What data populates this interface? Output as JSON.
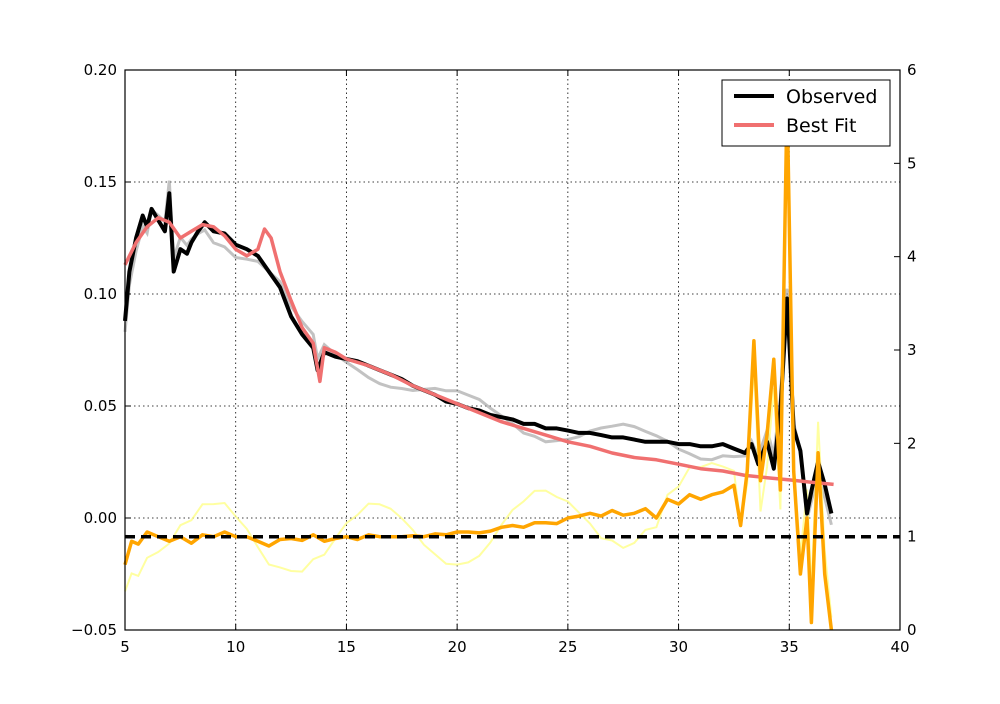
{
  "chart_data": {
    "type": "line",
    "title": "",
    "xlabel": "",
    "ylabel": "",
    "y2label": "",
    "xlim": [
      5,
      40
    ],
    "ylim": [
      -0.05,
      0.2
    ],
    "y2lim": [
      0,
      6
    ],
    "grid": true,
    "legend_position": "top-right",
    "x_ticks": [
      "5",
      "10",
      "15",
      "20",
      "25",
      "30",
      "35",
      "40"
    ],
    "y_ticks": [
      "−0.05",
      "0.00",
      "0.05",
      "0.10",
      "0.15",
      "0.20"
    ],
    "y2_ticks": [
      "0",
      "1",
      "2",
      "3",
      "4",
      "5",
      "6"
    ],
    "series": [
      {
        "name": "Observed",
        "axis": "left",
        "color": "#000000",
        "x": [
          5.0,
          5.2,
          5.5,
          5.8,
          6.0,
          6.2,
          6.5,
          6.8,
          7.0,
          7.2,
          7.5,
          7.8,
          8.0,
          8.3,
          8.6,
          9.0,
          9.5,
          10.0,
          10.5,
          11.0,
          11.5,
          12.0,
          12.5,
          13.0,
          13.5,
          13.7,
          14.0,
          14.5,
          15.0,
          15.5,
          16.0,
          16.5,
          17.0,
          17.5,
          18.0,
          18.5,
          19.0,
          19.5,
          20.0,
          20.5,
          21.0,
          21.5,
          22.0,
          22.5,
          23.0,
          23.5,
          24.0,
          24.5,
          25.0,
          25.5,
          26.0,
          26.5,
          27.0,
          27.5,
          28.0,
          28.5,
          29.0,
          29.5,
          30.0,
          30.5,
          31.0,
          31.5,
          32.0,
          32.5,
          33.0,
          33.3,
          33.6,
          34.0,
          34.3,
          34.6,
          34.9,
          35.2,
          35.5,
          35.8,
          36.0,
          36.3,
          36.6,
          36.9
        ],
        "values": [
          0.088,
          0.11,
          0.125,
          0.135,
          0.13,
          0.138,
          0.133,
          0.128,
          0.145,
          0.11,
          0.12,
          0.118,
          0.123,
          0.128,
          0.132,
          0.128,
          0.127,
          0.122,
          0.12,
          0.117,
          0.11,
          0.103,
          0.09,
          0.082,
          0.076,
          0.066,
          0.074,
          0.072,
          0.071,
          0.07,
          0.068,
          0.066,
          0.064,
          0.062,
          0.059,
          0.057,
          0.055,
          0.052,
          0.051,
          0.049,
          0.048,
          0.046,
          0.045,
          0.044,
          0.042,
          0.042,
          0.04,
          0.04,
          0.039,
          0.038,
          0.038,
          0.037,
          0.036,
          0.036,
          0.035,
          0.034,
          0.034,
          0.034,
          0.033,
          0.033,
          0.032,
          0.032,
          0.033,
          0.031,
          0.029,
          0.033,
          0.024,
          0.034,
          0.022,
          0.048,
          0.098,
          0.04,
          0.03,
          0.002,
          0.012,
          0.025,
          0.015,
          0.002
        ]
      },
      {
        "name": "Best Fit",
        "axis": "left",
        "color": "#f07070",
        "x": [
          5.0,
          5.5,
          6.0,
          6.5,
          7.0,
          7.5,
          8.0,
          8.5,
          9.0,
          9.5,
          10.0,
          10.5,
          11.0,
          11.3,
          11.6,
          12.0,
          12.5,
          13.0,
          13.5,
          13.8,
          14.0,
          14.5,
          15.0,
          16.0,
          17.0,
          18.0,
          19.0,
          20.0,
          21.0,
          22.0,
          23.0,
          24.0,
          25.0,
          26.0,
          27.0,
          28.0,
          29.0,
          30.0,
          31.0,
          32.0,
          33.0,
          34.0,
          35.0,
          36.0,
          37.0
        ],
        "values": [
          0.113,
          0.123,
          0.13,
          0.134,
          0.132,
          0.125,
          0.128,
          0.131,
          0.13,
          0.126,
          0.12,
          0.117,
          0.12,
          0.129,
          0.125,
          0.11,
          0.097,
          0.085,
          0.078,
          0.061,
          0.076,
          0.074,
          0.071,
          0.068,
          0.064,
          0.059,
          0.055,
          0.051,
          0.047,
          0.043,
          0.04,
          0.037,
          0.034,
          0.032,
          0.029,
          0.027,
          0.026,
          0.024,
          0.022,
          0.021,
          0.019,
          0.018,
          0.017,
          0.016,
          0.015
        ]
      },
      {
        "name": "",
        "axis": "right",
        "color": "#ffa500",
        "x": [
          5.0,
          5.3,
          5.6,
          6.0,
          6.5,
          7.0,
          7.5,
          8.0,
          8.5,
          9.0,
          9.5,
          10.0,
          10.5,
          11.0,
          11.5,
          12.0,
          12.5,
          13.0,
          13.5,
          14.0,
          14.5,
          15.0,
          15.5,
          16.0,
          16.5,
          17.0,
          17.5,
          18.0,
          18.5,
          19.0,
          19.5,
          20.0,
          20.5,
          21.0,
          21.5,
          22.0,
          22.5,
          23.0,
          23.5,
          24.0,
          24.5,
          25.0,
          25.5,
          26.0,
          26.5,
          27.0,
          27.5,
          28.0,
          28.5,
          29.0,
          29.5,
          30.0,
          30.5,
          31.0,
          31.5,
          32.0,
          32.5,
          32.8,
          33.1,
          33.4,
          33.7,
          34.0,
          34.3,
          34.6,
          34.9,
          35.2,
          35.5,
          35.8,
          36.0,
          36.3,
          36.6,
          36.9
        ],
        "values": [
          0.7,
          0.95,
          0.92,
          1.05,
          1.0,
          0.95,
          1.0,
          0.93,
          1.02,
          1.0,
          1.05,
          1.0,
          1.0,
          0.95,
          0.9,
          0.97,
          0.98,
          0.96,
          1.02,
          0.95,
          0.98,
          1.0,
          0.97,
          1.02,
          1.0,
          1.0,
          1.0,
          1.01,
          1.0,
          1.03,
          1.02,
          1.05,
          1.05,
          1.04,
          1.06,
          1.1,
          1.12,
          1.1,
          1.15,
          1.15,
          1.14,
          1.2,
          1.22,
          1.25,
          1.22,
          1.28,
          1.23,
          1.25,
          1.3,
          1.2,
          1.4,
          1.35,
          1.45,
          1.4,
          1.45,
          1.48,
          1.55,
          1.12,
          1.7,
          3.1,
          1.6,
          2.1,
          2.9,
          1.5,
          5.7,
          1.7,
          0.6,
          1.2,
          0.08,
          1.9,
          0.6,
          0.0
        ]
      },
      {
        "name": "",
        "axis": "right",
        "color": "#000000",
        "style": "dashed",
        "x": [
          5,
          40
        ],
        "values": [
          1,
          1
        ]
      }
    ]
  }
}
